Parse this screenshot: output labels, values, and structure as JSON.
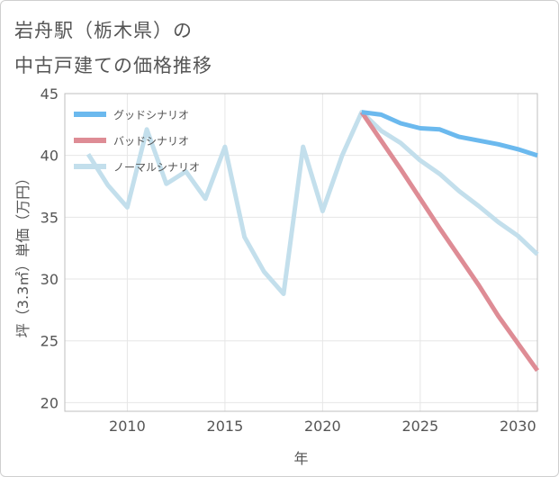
{
  "header": {
    "title_line1": "岩舟駅（栃木県）の",
    "title_line2": "中古戸建ての価格推移"
  },
  "chart_data": {
    "type": "line",
    "title": "岩舟駅（栃木県）の中古戸建ての価格推移",
    "xlabel": "年",
    "ylabel": "坪（3.3㎡）単価（万円）",
    "xlim": [
      2006.8,
      2031
    ],
    "ylim": [
      19.3,
      45
    ],
    "xticks": [
      2010,
      2015,
      2020,
      2025,
      2030
    ],
    "yticks": [
      20,
      25,
      30,
      35,
      40,
      45
    ],
    "grid": true,
    "legend_position": "top-left",
    "series": [
      {
        "name": "グッドシナリオ",
        "color": "#6bb9ee",
        "x": [
          2022,
          2023,
          2024,
          2025,
          2026,
          2027,
          2028,
          2029,
          2030,
          2031
        ],
        "values": [
          43.5,
          43.3,
          42.6,
          42.2,
          42.1,
          41.5,
          41.2,
          40.9,
          40.5,
          40.0
        ]
      },
      {
        "name": "バッドシナリオ",
        "color": "#de8c95",
        "x": [
          2022,
          2023,
          2024,
          2025,
          2026,
          2027,
          2028,
          2029,
          2030,
          2031
        ],
        "values": [
          43.5,
          41.2,
          38.9,
          36.5,
          34.1,
          31.8,
          29.5,
          27.0,
          24.8,
          22.6
        ]
      },
      {
        "name": "ノーマルシナリオ",
        "color": "#c3dfec",
        "x": [
          2008,
          2009,
          2010,
          2011,
          2012,
          2013,
          2014,
          2015,
          2016,
          2017,
          2018,
          2019,
          2020,
          2021,
          2022,
          2023,
          2024,
          2025,
          2026,
          2027,
          2028,
          2029,
          2030,
          2031
        ],
        "values": [
          40.1,
          37.6,
          35.8,
          42.1,
          37.7,
          38.7,
          36.5,
          40.7,
          33.4,
          30.6,
          28.8,
          40.7,
          35.5,
          40.0,
          43.5,
          42.0,
          41.0,
          39.6,
          38.5,
          37.1,
          35.9,
          34.6,
          33.5,
          32.0
        ]
      }
    ]
  }
}
